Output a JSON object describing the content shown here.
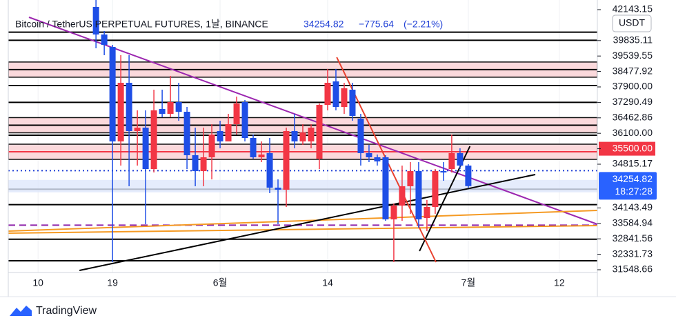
{
  "chart_data": {
    "type": "candlestick",
    "title": "Bitcoin / TetherUS PERPETUAL FUTURES, 1날, BINANCE",
    "last_price": 34254.82,
    "change": "−775.64",
    "change_pct": "(−2.21%)",
    "currency": "USDT",
    "countdown": "18:27:28",
    "brand": "TradingView",
    "up_color": "#f23645",
    "down_color": "#1e4ee6",
    "xlim": [
      -10.6,
      60.6
    ],
    "ylim": [
      31125,
      41000
    ],
    "xticks": [
      {
        "value": -7,
        "label": "10"
      },
      {
        "value": 2,
        "label": "19"
      },
      {
        "value": 15,
        "label": "6월"
      },
      {
        "value": 28,
        "label": "14"
      },
      {
        "value": 45,
        "label": "7월"
      },
      {
        "value": 56,
        "label": "12"
      }
    ],
    "open": [
      40750,
      39750,
      39300,
      35875,
      38000,
      36250,
      36375,
      34875,
      37050,
      36875,
      37300,
      36950,
      35375,
      34800,
      35300,
      36250,
      35875,
      36500,
      37300,
      36000,
      35300,
      35450,
      34200,
      34125,
      36250,
      35875,
      35875,
      35250,
      37200,
      38050,
      37125,
      37750,
      36700,
      35450,
      35300,
      35300,
      33050,
      33550,
      34250,
      34800,
      33100,
      33500,
      34800,
      34875,
      35450,
      35000
    ],
    "high": [
      41000,
      39875,
      39375,
      39000,
      39000,
      37000,
      37000,
      37750,
      37750,
      38250,
      38000,
      37125,
      36375,
      36375,
      36500,
      36625,
      36875,
      37500,
      37375,
      36125,
      35875,
      36000,
      34500,
      36375,
      36875,
      36500,
      36500,
      37250,
      38500,
      38500,
      38000,
      38000,
      36875,
      35750,
      35400,
      35375,
      33625,
      35000,
      35125,
      35125,
      33750,
      34875,
      35125,
      36125,
      35625,
      35050
    ],
    "low": [
      39250,
      39000,
      31500,
      35000,
      34250,
      35000,
      32875,
      34750,
      36750,
      36750,
      36625,
      34875,
      34250,
      34250,
      34500,
      35625,
      35875,
      36125,
      35875,
      35250,
      35125,
      34000,
      32875,
      33500,
      35625,
      35750,
      35625,
      34875,
      37000,
      37000,
      36875,
      36625,
      35000,
      35125,
      35000,
      33000,
      31500,
      33000,
      33250,
      32750,
      32625,
      33250,
      34450,
      34750,
      34875,
      34200
    ],
    "close": [
      39750,
      39375,
      35875,
      38000,
      36250,
      36375,
      34875,
      37000,
      36875,
      37300,
      36950,
      35375,
      34800,
      35300,
      36125,
      35875,
      36500,
      37250,
      36000,
      35300,
      35400,
      34200,
      34125,
      36250,
      35875,
      36200,
      36375,
      37200,
      38000,
      37125,
      37800,
      36800,
      35450,
      35300,
      35150,
      33050,
      33550,
      34250,
      34800,
      33050,
      33500,
      34800,
      34750,
      35450,
      35000,
      34254.82
    ],
    "levels": [
      {
        "value": 42143.15
      },
      {
        "value": 39835.11
      },
      {
        "value": 39539.55
      },
      {
        "value": 38477.92,
        "style": "zone"
      },
      {
        "value": 37900,
        "label": "37900.00"
      },
      {
        "value": 37290.49
      },
      {
        "value": 36462.86,
        "style": "zone"
      },
      {
        "value": 36100,
        "label": "36100.00"
      },
      {
        "value": 35500,
        "label": "35500.00",
        "style": "zone",
        "color": "#f23645"
      },
      {
        "value": 34815.17,
        "style": "dotted",
        "color": "#1e3fd6"
      },
      {
        "value": 34143.49
      },
      {
        "value": 33584.94
      },
      {
        "value": 32841.56,
        "style": "dashed",
        "color": "#8e24aa"
      },
      {
        "value": 32331.73
      },
      {
        "value": 31548.66
      }
    ],
    "drawings": [
      {
        "color": "#9c27b0",
        "x": [
          -8.1,
          60.6
        ],
        "y": [
          40375,
          32875
        ]
      },
      {
        "color": "#f59a23",
        "x": [
          -10.6,
          60.6
        ],
        "y": [
          32625,
          33375
        ]
      },
      {
        "color": "#f59a23",
        "x": [
          -10.6,
          60.6
        ],
        "y": [
          32550,
          32825
        ]
      },
      {
        "color": "#000000",
        "x": [
          -2,
          53.1
        ],
        "y": [
          31200,
          34675
        ]
      },
      {
        "color": "#000000",
        "x": [
          39.1,
          45.2
        ],
        "y": [
          31900,
          35700
        ]
      },
      {
        "color": "#e8412e",
        "x": [
          29.1,
          41.1
        ],
        "y": [
          38925,
          31500
        ]
      }
    ]
  }
}
